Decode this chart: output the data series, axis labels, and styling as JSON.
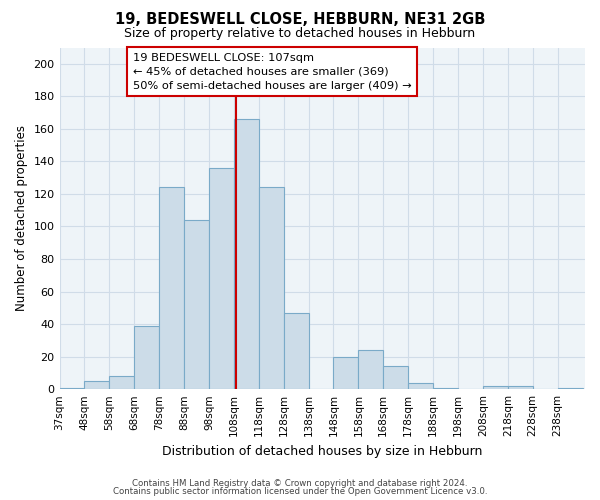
{
  "title": "19, BEDESWELL CLOSE, HEBBURN, NE31 2GB",
  "subtitle": "Size of property relative to detached houses in Hebburn",
  "xlabel": "Distribution of detached houses by size in Hebburn",
  "ylabel": "Number of detached properties",
  "bin_labels": [
    "37sqm",
    "48sqm",
    "58sqm",
    "68sqm",
    "78sqm",
    "88sqm",
    "98sqm",
    "108sqm",
    "118sqm",
    "128sqm",
    "138sqm",
    "148sqm",
    "158sqm",
    "168sqm",
    "178sqm",
    "188sqm",
    "198sqm",
    "208sqm",
    "218sqm",
    "228sqm",
    "238sqm"
  ],
  "bar_heights": [
    1,
    5,
    8,
    39,
    124,
    104,
    136,
    166,
    124,
    47,
    0,
    20,
    24,
    14,
    4,
    1,
    0,
    2,
    2,
    0,
    1
  ],
  "bar_color": "#ccdce8",
  "bar_edgecolor": "#7aaac8",
  "vline_x": 108,
  "vline_color": "#cc0000",
  "annotation_line1": "19 BEDESWELL CLOSE: 107sqm",
  "annotation_line2": "← 45% of detached houses are smaller (369)",
  "annotation_line3": "50% of semi-detached houses are larger (409) →",
  "ylim": [
    0,
    210
  ],
  "yticks": [
    0,
    20,
    40,
    60,
    80,
    100,
    120,
    140,
    160,
    180,
    200
  ],
  "footer_line1": "Contains HM Land Registry data © Crown copyright and database right 2024.",
  "footer_line2": "Contains public sector information licensed under the Open Government Licence v3.0.",
  "background_color": "#ffffff",
  "grid_color": "#d0dce8",
  "plot_bg_color": "#eef4f8"
}
